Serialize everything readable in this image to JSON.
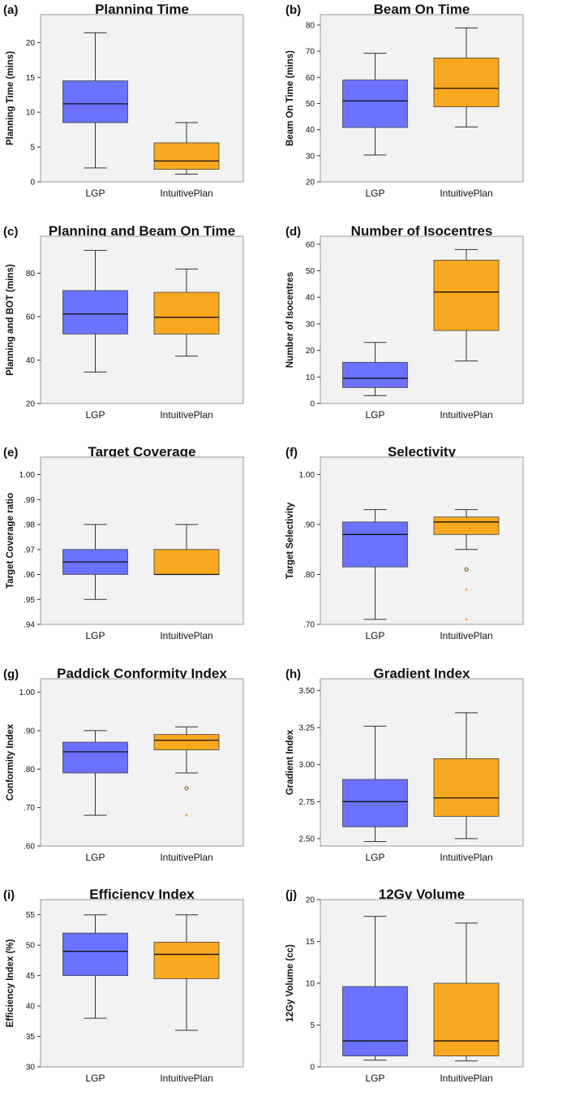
{
  "colors": {
    "LGP": "#6a72ff",
    "IntuitivePlan": "#f8a81f",
    "plot_bg": "#f2f2f2",
    "frame": "#999999",
    "whisker": "#333333",
    "median": "#111111",
    "outlier_circle": "#8a6d1f",
    "extreme": "#f8b24a"
  },
  "chart_data": [
    {
      "type": "boxplot",
      "letter": "(a)",
      "title": "Planning Time",
      "ylabel": "Planning Time (mins)",
      "ylim": [
        0,
        24
      ],
      "ticks": [
        0,
        5,
        10,
        15,
        20
      ],
      "tick_labels": [
        "0",
        "5",
        "10",
        "15",
        "20"
      ],
      "categories": [
        "LGP",
        "IntuitivePlan"
      ],
      "series": [
        {
          "name": "LGP",
          "min": 2.0,
          "q1": 8.5,
          "median": 11.2,
          "q3": 14.5,
          "max": 21.4,
          "outliers": [],
          "extremes": []
        },
        {
          "name": "IntuitivePlan",
          "min": 1.1,
          "q1": 1.8,
          "median": 3.0,
          "q3": 5.6,
          "max": 8.5,
          "outliers": [],
          "extremes": []
        }
      ]
    },
    {
      "type": "boxplot",
      "letter": "(b)",
      "title": "Beam On Time",
      "ylabel": "Beam On Time (mins)",
      "ylim": [
        20,
        84
      ],
      "ticks": [
        20,
        30,
        40,
        50,
        60,
        70,
        80
      ],
      "tick_labels": [
        "20",
        "30",
        "40",
        "50",
        "60",
        "70",
        "80"
      ],
      "categories": [
        "LGP",
        "IntuitivePlan"
      ],
      "series": [
        {
          "name": "LGP",
          "min": 30.3,
          "q1": 40.8,
          "median": 51.0,
          "q3": 59.0,
          "max": 69.2,
          "outliers": [],
          "extremes": []
        },
        {
          "name": "IntuitivePlan",
          "min": 41.0,
          "q1": 48.7,
          "median": 55.8,
          "q3": 67.4,
          "max": 78.9,
          "outliers": [],
          "extremes": []
        }
      ]
    },
    {
      "type": "boxplot",
      "letter": "(c)",
      "title": "Planning and Beam On Time",
      "ylabel": "Planning and BOT (mins)",
      "ylim": [
        20,
        97
      ],
      "ticks": [
        20,
        40,
        60,
        80
      ],
      "tick_labels": [
        "20",
        "40",
        "60",
        "80"
      ],
      "categories": [
        "LGP",
        "IntuitivePlan"
      ],
      "series": [
        {
          "name": "LGP",
          "min": 34.5,
          "q1": 52.0,
          "median": 61.2,
          "q3": 72.0,
          "max": 90.5,
          "outliers": [],
          "extremes": []
        },
        {
          "name": "IntuitivePlan",
          "min": 41.8,
          "q1": 52.0,
          "median": 59.7,
          "q3": 71.2,
          "max": 81.9,
          "outliers": [],
          "extremes": []
        }
      ]
    },
    {
      "type": "boxplot",
      "letter": "(d)",
      "title": "Number of Isocentres",
      "ylabel": "Number of Isocentres",
      "ylim": [
        0,
        63
      ],
      "ticks": [
        0,
        10,
        20,
        30,
        40,
        50,
        60
      ],
      "tick_labels": [
        "0",
        "10",
        "20",
        "30",
        "40",
        "50",
        "60"
      ],
      "categories": [
        "LGP",
        "IntuitivePlan"
      ],
      "series": [
        {
          "name": "LGP",
          "min": 3.0,
          "q1": 6.0,
          "median": 9.5,
          "q3": 15.5,
          "max": 23.0,
          "outliers": [],
          "extremes": []
        },
        {
          "name": "IntuitivePlan",
          "min": 16.0,
          "q1": 27.5,
          "median": 42.0,
          "q3": 54.0,
          "max": 58.0,
          "outliers": [],
          "extremes": []
        }
      ]
    },
    {
      "type": "boxplot",
      "letter": "(e)",
      "title": "Target Coverage",
      "ylabel": "Target Coverage ratio",
      "ylim": [
        0.94,
        1.007
      ],
      "ticks": [
        0.94,
        0.95,
        0.96,
        0.97,
        0.98,
        0.99,
        1.0
      ],
      "tick_labels": [
        ".94",
        ".95",
        ".96",
        ".97",
        ".98",
        ".99",
        "1.00"
      ],
      "categories": [
        "LGP",
        "IntuitivePlan"
      ],
      "series": [
        {
          "name": "LGP",
          "min": 0.95,
          "q1": 0.96,
          "median": 0.965,
          "q3": 0.97,
          "max": 0.98,
          "outliers": [],
          "extremes": []
        },
        {
          "name": "IntuitivePlan",
          "min": 0.96,
          "q1": 0.96,
          "median": 0.96,
          "q3": 0.97,
          "max": 0.98,
          "outliers": [],
          "extremes": []
        }
      ]
    },
    {
      "type": "boxplot",
      "letter": "(f)",
      "title": "Selectivity",
      "ylabel": "Target Selectivity",
      "ylim": [
        0.7,
        1.035
      ],
      "ticks": [
        0.7,
        0.8,
        0.9,
        1.0
      ],
      "tick_labels": [
        ".70",
        ".80",
        ".90",
        "1.00"
      ],
      "categories": [
        "LGP",
        "IntuitivePlan"
      ],
      "series": [
        {
          "name": "LGP",
          "min": 0.71,
          "q1": 0.815,
          "median": 0.88,
          "q3": 0.905,
          "max": 0.93,
          "outliers": [],
          "extremes": []
        },
        {
          "name": "IntuitivePlan",
          "min": 0.85,
          "q1": 0.88,
          "median": 0.905,
          "q3": 0.915,
          "max": 0.93,
          "outliers": [
            0.81
          ],
          "extremes": [
            0.77,
            0.71
          ]
        }
      ]
    },
    {
      "type": "boxplot",
      "letter": "(g)",
      "title": "Paddick Conformity Index",
      "ylabel": "Conformity Index",
      "ylim": [
        0.6,
        1.035
      ],
      "ticks": [
        0.6,
        0.7,
        0.8,
        0.9,
        1.0
      ],
      "tick_labels": [
        ".60",
        ".70",
        ".80",
        ".90",
        "1.00"
      ],
      "categories": [
        "LGP",
        "IntuitivePlan"
      ],
      "series": [
        {
          "name": "LGP",
          "min": 0.68,
          "q1": 0.79,
          "median": 0.845,
          "q3": 0.87,
          "max": 0.9,
          "outliers": [],
          "extremes": []
        },
        {
          "name": "IntuitivePlan",
          "min": 0.79,
          "q1": 0.85,
          "median": 0.875,
          "q3": 0.89,
          "max": 0.91,
          "outliers": [
            0.75
          ],
          "extremes": [
            0.68
          ]
        }
      ]
    },
    {
      "type": "boxplot",
      "letter": "(h)",
      "title": "Gradient Index",
      "ylabel": "Gradient Index",
      "ylim": [
        2.45,
        3.58
      ],
      "ticks": [
        2.5,
        2.75,
        3.0,
        3.25,
        3.5
      ],
      "tick_labels": [
        "2.50",
        "2.75",
        "3.00",
        "3.25",
        "3.50"
      ],
      "categories": [
        "LGP",
        "IntuitivePlan"
      ],
      "series": [
        {
          "name": "LGP",
          "min": 2.48,
          "q1": 2.58,
          "median": 2.75,
          "q3": 2.9,
          "max": 3.26,
          "outliers": [],
          "extremes": []
        },
        {
          "name": "IntuitivePlan",
          "min": 2.5,
          "q1": 2.65,
          "median": 2.775,
          "q3": 3.04,
          "max": 3.35,
          "outliers": [],
          "extremes": []
        }
      ]
    },
    {
      "type": "boxplot",
      "letter": "(i)",
      "title": "Efficiency Index",
      "ylabel": "Efficiency Index (%)",
      "ylim": [
        30,
        57.5
      ],
      "ticks": [
        30,
        35,
        40,
        45,
        50,
        55
      ],
      "tick_labels": [
        "30",
        "35",
        "40",
        "45",
        "50",
        "55"
      ],
      "categories": [
        "LGP",
        "IntuitivePlan"
      ],
      "series": [
        {
          "name": "LGP",
          "min": 38.0,
          "q1": 45.0,
          "median": 49.0,
          "q3": 52.0,
          "max": 55.0,
          "outliers": [],
          "extremes": []
        },
        {
          "name": "IntuitivePlan",
          "min": 36.0,
          "q1": 44.5,
          "median": 48.5,
          "q3": 50.5,
          "max": 55.0,
          "outliers": [],
          "extremes": []
        }
      ]
    },
    {
      "type": "boxplot",
      "letter": "(j)",
      "title": "12Gy Volume",
      "ylabel": "12Gy Volume (cc)",
      "ylim": [
        0,
        20
      ],
      "ticks": [
        0,
        5,
        10,
        15,
        20
      ],
      "tick_labels": [
        "0",
        "5",
        "10",
        "15",
        "20"
      ],
      "categories": [
        "LGP",
        "IntuitivePlan"
      ],
      "series": [
        {
          "name": "LGP",
          "min": 0.8,
          "q1": 1.3,
          "median": 3.1,
          "q3": 9.6,
          "max": 18.0,
          "outliers": [],
          "extremes": []
        },
        {
          "name": "IntuitivePlan",
          "min": 0.7,
          "q1": 1.3,
          "median": 3.1,
          "q3": 10.0,
          "max": 17.2,
          "outliers": [],
          "extremes": []
        }
      ]
    }
  ]
}
